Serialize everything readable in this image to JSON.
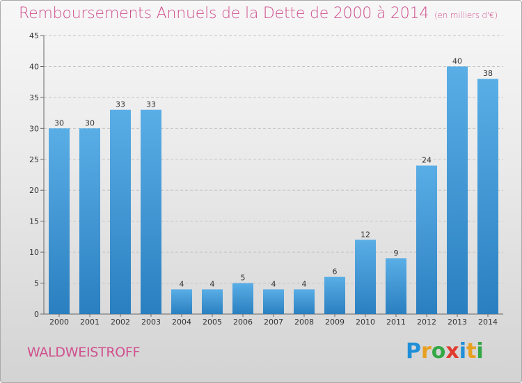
{
  "header": {
    "title": "Remboursements Annuels de la Dette de 2000 à 2014",
    "subtitle": "(en milliers d'€)"
  },
  "footer": {
    "commune": "WALDWEISTROFF",
    "logo_letters": [
      "P",
      "r",
      "o",
      "x",
      "i",
      "t",
      "i"
    ]
  },
  "colors": {
    "title": "#d0508e",
    "bar_top": "#5aaee6",
    "bar_bottom": "#2a7fc0",
    "logo": [
      "#1f8fd8",
      "#e8a020",
      "#33a845",
      "#e23b2e",
      "#1f8fd8",
      "#e8a020",
      "#33a845"
    ]
  },
  "chart_data": {
    "type": "bar",
    "title": "Remboursements Annuels de la Dette de 2000 à 2014",
    "unit": "(en milliers d'€)",
    "categories": [
      "2000",
      "2001",
      "2002",
      "2003",
      "2004",
      "2005",
      "2006",
      "2007",
      "2008",
      "2009",
      "2010",
      "2011",
      "2012",
      "2013",
      "2014"
    ],
    "values": [
      30,
      30,
      33,
      33,
      4,
      4,
      5,
      4,
      4,
      6,
      12,
      9,
      24,
      40,
      38
    ],
    "ylim": [
      0,
      45
    ],
    "yticks": [
      0,
      5,
      10,
      15,
      20,
      25,
      30,
      35,
      40,
      45
    ],
    "grid": true
  }
}
